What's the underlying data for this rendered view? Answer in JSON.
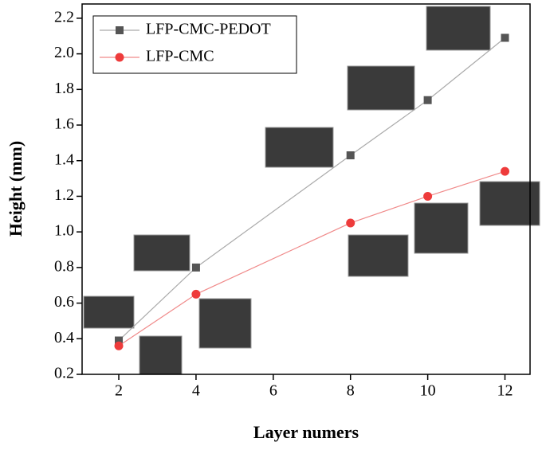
{
  "chart_data": {
    "type": "line",
    "x_label": "Layer numers",
    "y_label": "Height (mm)",
    "x": [
      2,
      4,
      8,
      10,
      12
    ],
    "series": [
      {
        "name": "LFP-CMC-PEDOT",
        "color": "#555555",
        "line_color": "#aaaaaa",
        "marker": "square",
        "values": [
          0.39,
          0.8,
          1.43,
          1.74,
          2.09
        ]
      },
      {
        "name": "LFP-CMC",
        "color": "#ee3b3b",
        "line_color": "#f08a8a",
        "marker": "circle",
        "values": [
          0.36,
          0.65,
          1.05,
          1.2,
          1.34
        ]
      }
    ],
    "xlim": [
      1.05,
      12.65
    ],
    "xticks": [
      2,
      4,
      6,
      8,
      10,
      12
    ],
    "ylim": [
      0.2,
      2.28
    ],
    "yticks": [
      0.2,
      0.4,
      0.6,
      0.8,
      1.0,
      1.2,
      1.4,
      1.6,
      1.8,
      2.0,
      2.2
    ],
    "legend": "upper left",
    "grid": false
  }
}
